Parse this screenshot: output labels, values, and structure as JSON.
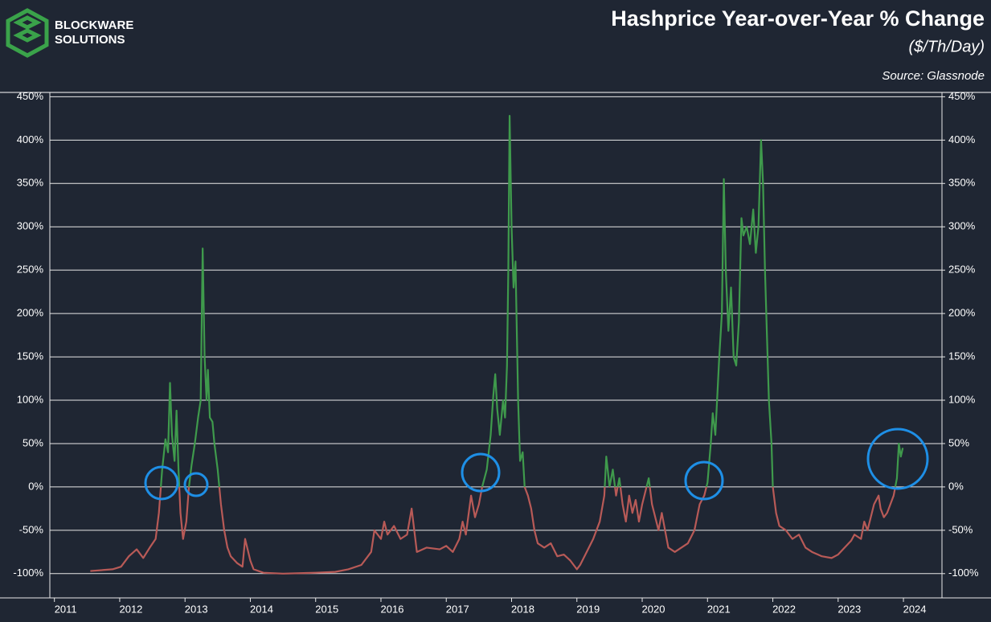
{
  "logo": {
    "line1": "BLOCKWARE",
    "line2": "SOLUTIONS"
  },
  "chart_data": {
    "type": "line",
    "title": "Hashprice Year-over-Year % Change",
    "subtitle": "($/Th/Day)",
    "source": "Source: Glassnode",
    "x": [
      2011.55,
      2011.89,
      2012.02,
      2012.14,
      2012.26,
      2012.36,
      2012.46,
      2012.55,
      2012.6,
      2012.65,
      2012.7,
      2012.74,
      2012.77,
      2012.8,
      2012.84,
      2012.87,
      2012.9,
      2012.93,
      2012.97,
      2013.02,
      2013.06,
      2013.1,
      2013.15,
      2013.2,
      2013.24,
      2013.27,
      2013.3,
      2013.33,
      2013.35,
      2013.38,
      2013.42,
      2013.45,
      2013.5,
      2013.55,
      2013.6,
      2013.65,
      2013.7,
      2013.8,
      2013.88,
      2013.92,
      2014.0,
      2014.05,
      2014.2,
      2014.5,
      2015.0,
      2015.3,
      2015.5,
      2015.7,
      2015.85,
      2015.9,
      2016.0,
      2016.05,
      2016.1,
      2016.2,
      2016.3,
      2016.4,
      2016.47,
      2016.55,
      2016.7,
      2016.9,
      2017.0,
      2017.1,
      2017.2,
      2017.25,
      2017.3,
      2017.38,
      2017.44,
      2017.5,
      2017.55,
      2017.62,
      2017.68,
      2017.72,
      2017.75,
      2017.78,
      2017.82,
      2017.87,
      2017.9,
      2017.93,
      2017.95,
      2017.97,
      2018.0,
      2018.03,
      2018.06,
      2018.1,
      2018.13,
      2018.17,
      2018.2,
      2018.25,
      2018.3,
      2018.35,
      2018.4,
      2018.5,
      2018.6,
      2018.7,
      2018.8,
      2018.9,
      2019.0,
      2019.05,
      2019.15,
      2019.25,
      2019.35,
      2019.42,
      2019.45,
      2019.5,
      2019.55,
      2019.6,
      2019.65,
      2019.7,
      2019.75,
      2019.8,
      2019.85,
      2019.9,
      2019.95,
      2020.0,
      2020.1,
      2020.15,
      2020.25,
      2020.3,
      2020.4,
      2020.5,
      2020.6,
      2020.7,
      2020.8,
      2020.88,
      2020.95,
      2021.0,
      2021.05,
      2021.08,
      2021.12,
      2021.18,
      2021.22,
      2021.25,
      2021.28,
      2021.32,
      2021.36,
      2021.4,
      2021.44,
      2021.48,
      2021.52,
      2021.55,
      2021.6,
      2021.65,
      2021.7,
      2021.74,
      2021.78,
      2021.82,
      2021.85,
      2021.88,
      2021.9,
      2021.94,
      2021.98,
      2022.0,
      2022.05,
      2022.1,
      2022.2,
      2022.3,
      2022.4,
      2022.5,
      2022.6,
      2022.75,
      2022.9,
      2023.0,
      2023.1,
      2023.2,
      2023.25,
      2023.35,
      2023.4,
      2023.45,
      2023.55,
      2023.62,
      2023.65,
      2023.7,
      2023.75,
      2023.8,
      2023.85,
      2023.9,
      2023.93,
      2023.96,
      2023.99
    ],
    "series": [
      {
        "color": "#3f9a4c",
        "negative_color": "#b85a57",
        "values": [
          -97,
          -95,
          -92,
          -80,
          -72,
          -82,
          -70,
          -60,
          -30,
          20,
          55,
          40,
          120,
          60,
          30,
          88,
          20,
          -30,
          -60,
          -40,
          0,
          25,
          50,
          80,
          100,
          275,
          150,
          100,
          135,
          80,
          75,
          50,
          20,
          -20,
          -50,
          -70,
          -80,
          -88,
          -92,
          -60,
          -85,
          -95,
          -99,
          -100,
          -99,
          -98,
          -95,
          -90,
          -75,
          -50,
          -60,
          -40,
          -55,
          -45,
          -60,
          -55,
          -25,
          -75,
          -70,
          -72,
          -68,
          -75,
          -60,
          -40,
          -55,
          -10,
          -35,
          -20,
          0,
          20,
          60,
          105,
          130,
          90,
          60,
          100,
          80,
          140,
          250,
          428,
          300,
          230,
          260,
          100,
          30,
          40,
          0,
          -10,
          -25,
          -50,
          -65,
          -70,
          -65,
          -80,
          -78,
          -85,
          -95,
          -90,
          -75,
          -60,
          -40,
          -10,
          35,
          0,
          20,
          -10,
          10,
          -20,
          -40,
          -10,
          -30,
          -15,
          -40,
          -20,
          10,
          -20,
          -50,
          -30,
          -70,
          -75,
          -70,
          -65,
          -50,
          -20,
          -10,
          5,
          50,
          85,
          60,
          150,
          200,
          355,
          250,
          180,
          230,
          150,
          140,
          190,
          310,
          290,
          300,
          280,
          320,
          270,
          300,
          400,
          350,
          250,
          200,
          100,
          50,
          0,
          -30,
          -45,
          -50,
          -60,
          -55,
          -70,
          -75,
          -80,
          -82,
          -78,
          -70,
          -62,
          -55,
          -60,
          -40,
          -50,
          -20,
          -10,
          -25,
          -35,
          -30,
          -20,
          -10,
          10,
          50,
          35,
          45
        ]
      }
    ],
    "xlim": [
      2010.93,
      2024.59
    ],
    "xticks": [
      2011,
      2012,
      2013,
      2014,
      2015,
      2016,
      2017,
      2018,
      2019,
      2020,
      2021,
      2022,
      2023,
      2024
    ],
    "ylim": [
      -128,
      455
    ],
    "yticks": [
      {
        "value": -100,
        "label": "-100%"
      },
      {
        "value": -50,
        "label": "-50%"
      },
      {
        "value": 0,
        "label": "0%"
      },
      {
        "value": 50,
        "label": "50%"
      },
      {
        "value": 100,
        "label": "100%"
      },
      {
        "value": 150,
        "label": "150%"
      },
      {
        "value": 200,
        "label": "200%"
      },
      {
        "value": 250,
        "label": "250%"
      },
      {
        "value": 300,
        "label": "300%"
      },
      {
        "value": 350,
        "label": "350%"
      },
      {
        "value": 400,
        "label": "400%"
      },
      {
        "value": 450,
        "label": "450%"
      }
    ],
    "y2lim": [
      -128,
      455
    ],
    "y2ticks": [
      {
        "value": -100,
        "label": "-100%"
      },
      {
        "value": -50,
        "label": "-50%"
      },
      {
        "value": 0,
        "label": "0%"
      },
      {
        "value": 50,
        "label": "50%"
      },
      {
        "value": 100,
        "label": "100%"
      },
      {
        "value": 150,
        "label": "150%"
      },
      {
        "value": 200,
        "label": "200%"
      },
      {
        "value": 250,
        "label": "250%"
      },
      {
        "value": 300,
        "label": "300%"
      },
      {
        "value": 350,
        "label": "350%"
      },
      {
        "value": 400,
        "label": "400%"
      },
      {
        "value": 450,
        "label": "450%"
      }
    ],
    "grid": true
  }
}
